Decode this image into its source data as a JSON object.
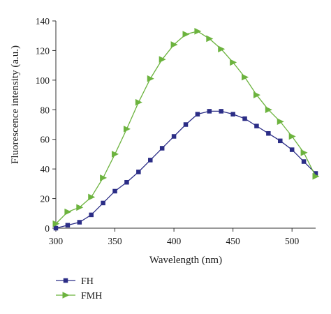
{
  "chart_data": {
    "type": "line",
    "title": "",
    "xlabel": "Wavelength (nm)",
    "ylabel": "Fluorescence intensity (a.u.)",
    "xlim": [
      300,
      520
    ],
    "ylim": [
      0,
      140
    ],
    "x_ticks": [
      300,
      350,
      400,
      450,
      500
    ],
    "y_ticks": [
      0,
      20,
      40,
      60,
      80,
      100,
      120,
      140
    ],
    "grid": false,
    "legend_position": "bottom-left",
    "series": [
      {
        "name": "FH",
        "color": "#2b2d86",
        "marker": "square",
        "x": [
          300,
          310,
          320,
          330,
          340,
          350,
          360,
          370,
          380,
          390,
          400,
          410,
          420,
          430,
          440,
          450,
          460,
          470,
          480,
          490,
          500,
          510,
          520
        ],
        "y": [
          0,
          2,
          4,
          9,
          17,
          25,
          31,
          38,
          46,
          54,
          62,
          70,
          77,
          79,
          79,
          77,
          74,
          69,
          64,
          59,
          53,
          45,
          37
        ]
      },
      {
        "name": "FMH",
        "color": "#6cb33e",
        "marker": "triangle-right",
        "x": [
          300,
          310,
          320,
          330,
          340,
          350,
          360,
          370,
          380,
          390,
          400,
          410,
          420,
          430,
          440,
          450,
          460,
          470,
          480,
          490,
          500,
          510,
          520
        ],
        "y": [
          3,
          11,
          14,
          21,
          34,
          50,
          67,
          85,
          101,
          114,
          124,
          131,
          133,
          128,
          121,
          112,
          102,
          90,
          80,
          72,
          62,
          51,
          35
        ]
      }
    ]
  }
}
